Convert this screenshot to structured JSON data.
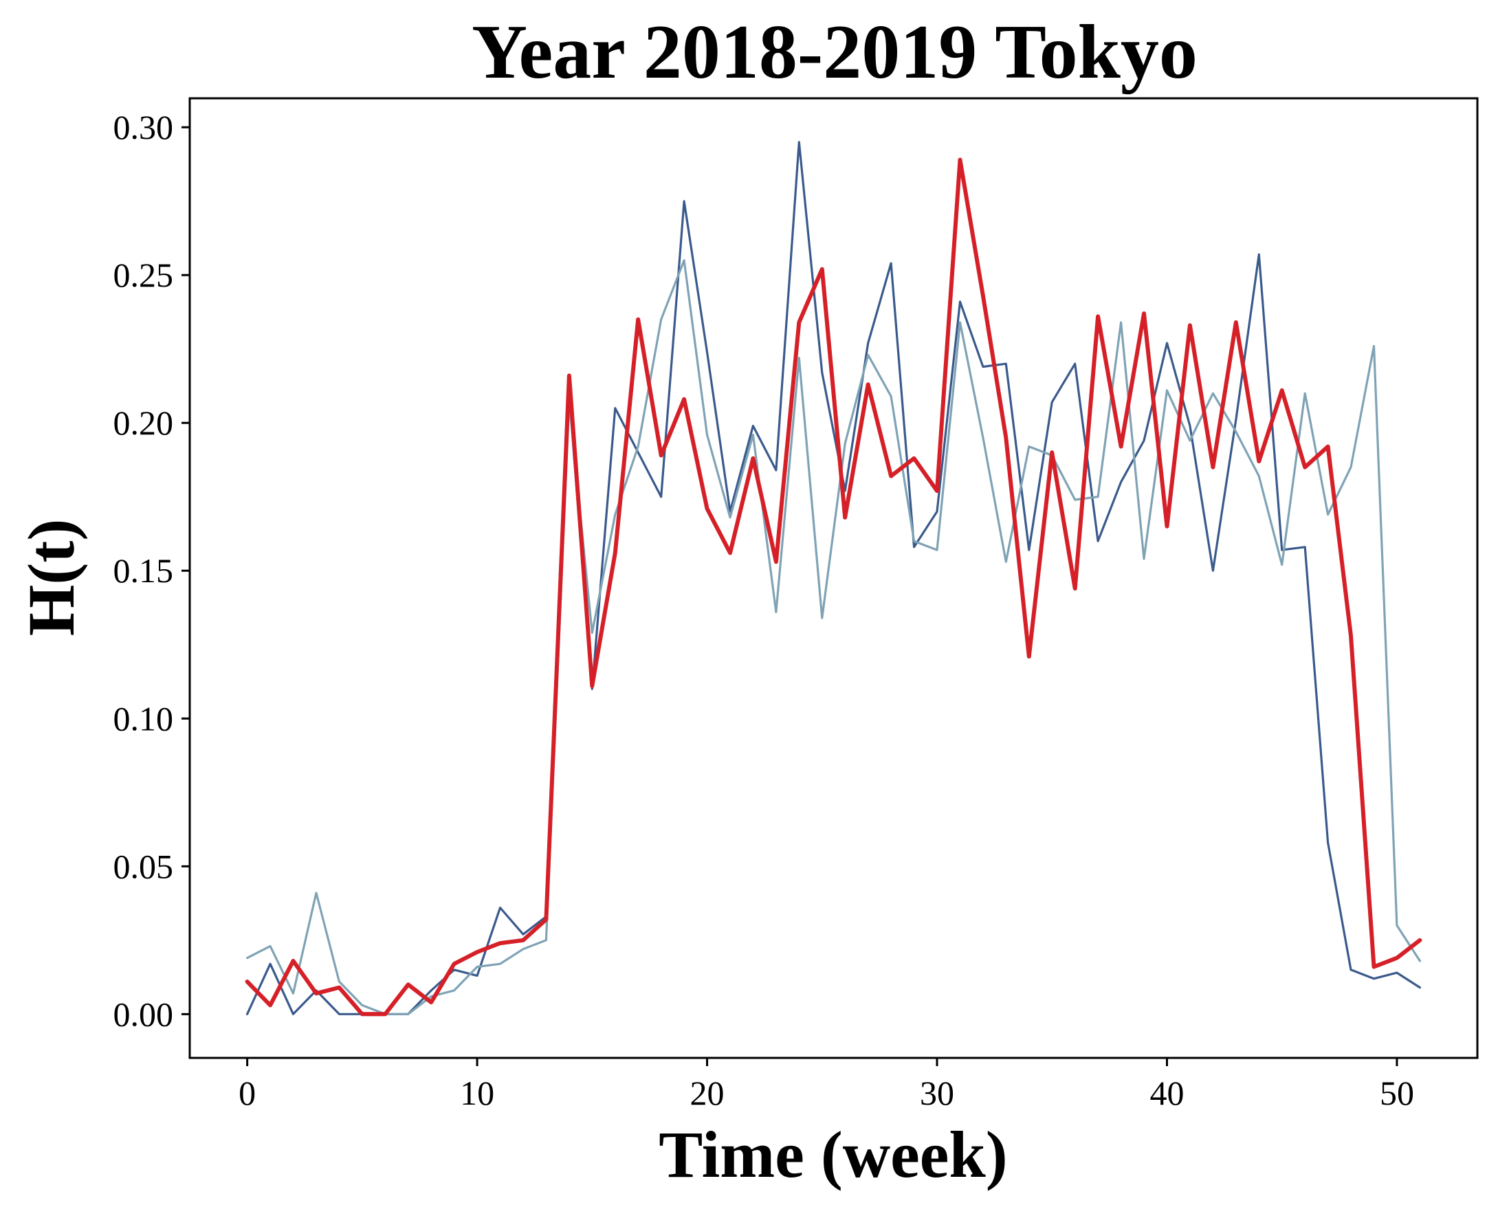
{
  "chart_data": {
    "type": "line",
    "title": "Year 2018-2019 Tokyo",
    "xlabel": "Time (week)",
    "ylabel": "H(t)",
    "xlim": [
      -2.5,
      53.5
    ],
    "ylim": [
      -0.0148,
      0.3098
    ],
    "xticks": [
      0,
      10,
      20,
      30,
      40,
      50
    ],
    "xtick_labels": [
      "0",
      "10",
      "20",
      "30",
      "40",
      "50"
    ],
    "yticks": [
      0.0,
      0.05,
      0.1,
      0.15,
      0.2,
      0.25,
      0.3
    ],
    "ytick_labels": [
      "0.00",
      "0.05",
      "0.10",
      "0.15",
      "0.20",
      "0.25",
      "0.30"
    ],
    "grid": false,
    "x": [
      0,
      1,
      2,
      3,
      4,
      5,
      6,
      7,
      8,
      9,
      10,
      11,
      12,
      13,
      14,
      15,
      16,
      17,
      18,
      19,
      20,
      21,
      22,
      23,
      24,
      25,
      26,
      27,
      28,
      29,
      30,
      31,
      32,
      33,
      34,
      35,
      36,
      37,
      38,
      39,
      40,
      41,
      42,
      43,
      44,
      45,
      46,
      47,
      48,
      49,
      50,
      51
    ],
    "series": [
      {
        "color": "#3a5a8c",
        "values": [
          0.0,
          0.017,
          0.0,
          0.008,
          0.0,
          0.0,
          0.0,
          0.0,
          0.008,
          0.015,
          0.013,
          0.036,
          0.027,
          0.033,
          0.21,
          0.11,
          0.205,
          0.19,
          0.175,
          0.275,
          0.224,
          0.17,
          0.199,
          0.184,
          0.295,
          0.217,
          0.177,
          0.227,
          0.254,
          0.158,
          0.17,
          0.241,
          0.219,
          0.22,
          0.157,
          0.207,
          0.22,
          0.16,
          0.18,
          0.194,
          0.227,
          0.199,
          0.15,
          0.201,
          0.257,
          0.157,
          0.158,
          0.058,
          0.015,
          0.012,
          0.014,
          0.009
        ]
      },
      {
        "color": "#7fa3b5",
        "values": [
          0.019,
          0.023,
          0.007,
          0.041,
          0.011,
          0.003,
          0.0,
          0.0,
          0.006,
          0.008,
          0.016,
          0.017,
          0.022,
          0.025,
          0.207,
          0.129,
          0.169,
          0.192,
          0.235,
          0.255,
          0.196,
          0.168,
          0.196,
          0.136,
          0.222,
          0.134,
          0.193,
          0.223,
          0.209,
          0.16,
          0.157,
          0.234,
          0.195,
          0.153,
          0.192,
          0.189,
          0.174,
          0.175,
          0.234,
          0.154,
          0.211,
          0.194,
          0.21,
          0.197,
          0.182,
          0.152,
          0.21,
          0.169,
          0.185,
          0.226,
          0.03,
          0.018
        ]
      },
      {
        "color": "#d62028",
        "values": [
          0.011,
          0.003,
          0.018,
          0.007,
          0.009,
          0.0,
          0.0,
          0.01,
          0.004,
          0.017,
          0.021,
          0.024,
          0.025,
          0.032,
          0.216,
          0.111,
          0.156,
          0.235,
          0.189,
          0.208,
          0.171,
          0.156,
          0.188,
          0.153,
          0.234,
          0.252,
          0.168,
          0.213,
          0.182,
          0.188,
          0.177,
          0.289,
          0.243,
          0.195,
          0.121,
          0.19,
          0.144,
          0.236,
          0.192,
          0.237,
          0.165,
          0.233,
          0.185,
          0.234,
          0.187,
          0.211,
          0.185,
          0.192,
          0.128,
          0.016,
          0.019,
          0.025
        ]
      }
    ]
  }
}
